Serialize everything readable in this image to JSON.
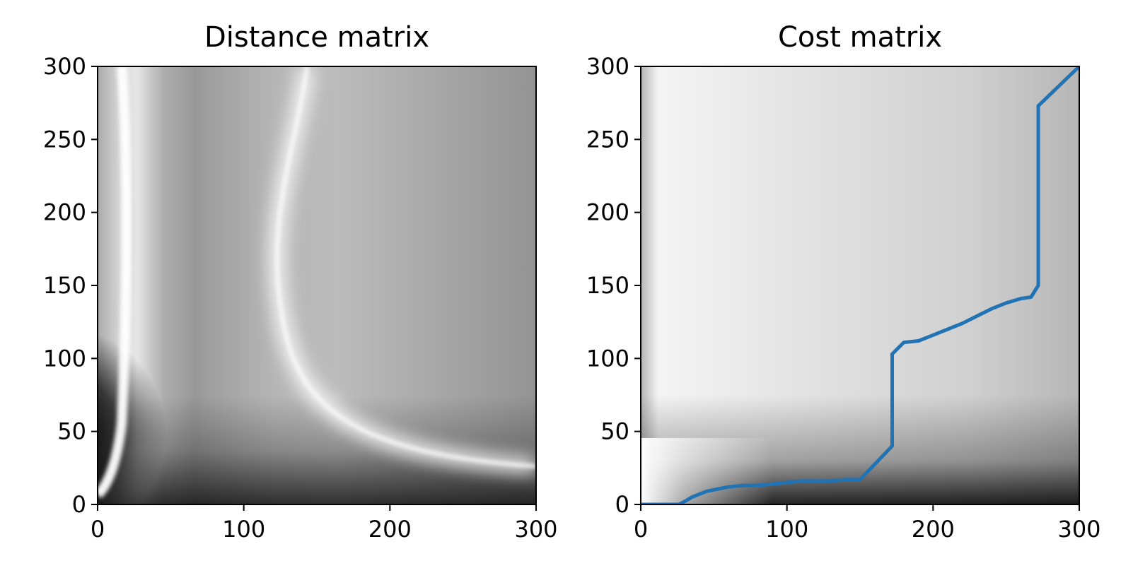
{
  "chart_data": [
    {
      "type": "heatmap",
      "title": "Distance matrix",
      "xlabel": "",
      "ylabel": "",
      "xlim": [
        0,
        300
      ],
      "ylim": [
        0,
        300
      ],
      "xticks": [
        "0",
        "100",
        "200",
        "300"
      ],
      "yticks": [
        "0",
        "50",
        "100",
        "150",
        "200",
        "250",
        "300"
      ],
      "colormap": "grayscale (dark = low)",
      "grid": false
    },
    {
      "type": "heatmap",
      "title": "Cost matrix",
      "xlabel": "",
      "ylabel": "",
      "xlim": [
        0,
        300
      ],
      "ylim": [
        0,
        300
      ],
      "xticks": [
        "0",
        "100",
        "200",
        "300"
      ],
      "yticks": [
        "0",
        "50",
        "100",
        "150",
        "200",
        "250",
        "300"
      ],
      "colormap": "grayscale (dark = low)",
      "grid": false,
      "path_color": "#2273b4",
      "path": {
        "x": [
          0,
          26,
          30,
          35,
          40,
          45,
          50,
          60,
          70,
          80,
          90,
          100,
          110,
          120,
          130,
          140,
          150,
          172,
          172,
          176,
          180,
          190,
          200,
          210,
          220,
          230,
          240,
          250,
          260,
          267,
          272,
          272,
          300
        ],
        "y": [
          0,
          0,
          2,
          5,
          7,
          9,
          10,
          12,
          13,
          13,
          14,
          15,
          16,
          16,
          16,
          17,
          17,
          40,
          103,
          107,
          111,
          112,
          116,
          120,
          124,
          129,
          134,
          138,
          141,
          142,
          150,
          273,
          300
        ]
      }
    }
  ]
}
